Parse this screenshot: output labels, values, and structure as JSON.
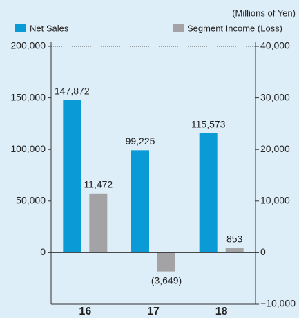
{
  "chart_data": {
    "type": "bar",
    "unit_note": "(Millions of Yen)",
    "categories": [
      "16",
      "17",
      "18"
    ],
    "series": [
      {
        "name": "Net Sales",
        "color": "#0a9ad6",
        "values": [
          147872,
          99225,
          115573
        ],
        "value_labels": [
          "147,872",
          "99,225",
          "115,573"
        ]
      },
      {
        "name": "Segment Income (Loss)",
        "color": "#a3a3a5",
        "axis": "y2",
        "values": [
          11472,
          -3649,
          853
        ],
        "value_labels": [
          "11,472",
          "(3,649)",
          "853"
        ]
      }
    ],
    "ylim": [
      -50000,
      200000
    ],
    "yticks": [
      {
        "value": 0,
        "label": "0"
      },
      {
        "value": 50000,
        "label": "50,000"
      },
      {
        "value": 100000,
        "label": "100,000"
      },
      {
        "value": 150000,
        "label": "150,000"
      },
      {
        "value": 200000,
        "label": "200,000"
      }
    ],
    "y2lim": [
      -10000,
      40000
    ],
    "y2ticks": [
      {
        "value": -10000,
        "label": "−10,000"
      },
      {
        "value": 0,
        "label": "0"
      },
      {
        "value": 10000,
        "label": "10,000"
      },
      {
        "value": 20000,
        "label": "20,000"
      },
      {
        "value": 30000,
        "label": "30,000"
      },
      {
        "value": 40000,
        "label": "40,000"
      }
    ]
  }
}
